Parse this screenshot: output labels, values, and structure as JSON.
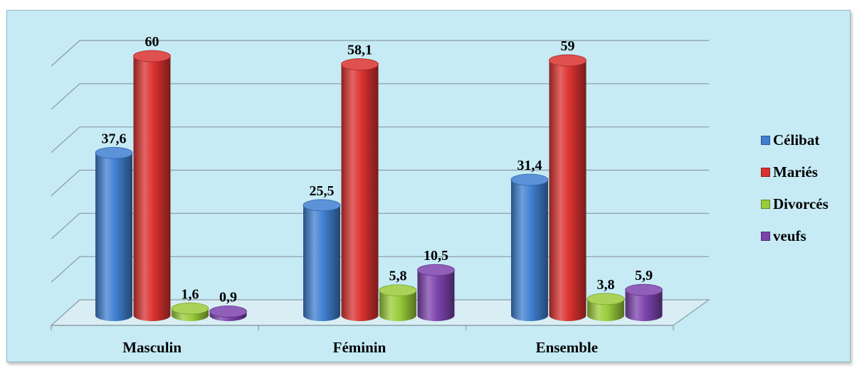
{
  "chart_data": {
    "type": "bar",
    "style": "3d-cylinder",
    "categories": [
      "Masculin",
      "Féminin",
      "Ensemble"
    ],
    "series": [
      {
        "name": "Célibat",
        "values": [
          "37,6",
          "25,5",
          "31,4"
        ],
        "numeric": [
          37.6,
          25.5,
          31.4
        ],
        "color": "#3f7fd0"
      },
      {
        "name": "Mariés",
        "values": [
          "60",
          "58,1",
          "59"
        ],
        "numeric": [
          60,
          58.1,
          59
        ],
        "color": "#d9322f"
      },
      {
        "name": "Divorcés",
        "values": [
          "1,6",
          "5,8",
          "3,8"
        ],
        "numeric": [
          1.6,
          5.8,
          3.8
        ],
        "color": "#9acb3a"
      },
      {
        "name": "veufs",
        "values": [
          "0,9",
          "10,5",
          "5,9"
        ],
        "numeric": [
          0.9,
          10.5,
          5.9
        ],
        "color": "#7c43ad"
      }
    ],
    "ylim": [
      0,
      60
    ],
    "grid": true,
    "legend_position": "right"
  }
}
